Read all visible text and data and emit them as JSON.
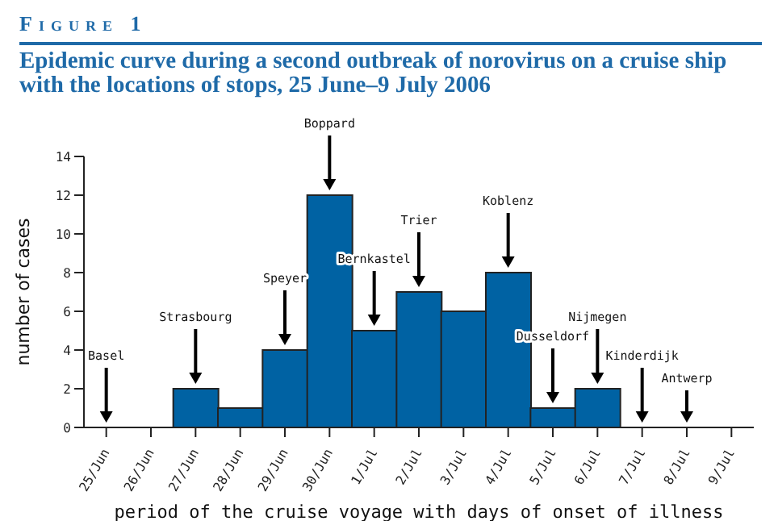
{
  "chart_data": {
    "type": "bar",
    "title": "Epidemic curve during a second outbreak of norovirus on a cruise ship with the locations of stops, 25 June–9 July 2006",
    "xlabel": "period of the cruise voyage with days of onset of illness",
    "ylabel": "number of cases",
    "categories": [
      "25/Jun",
      "26/Jun",
      "27/Jun",
      "28/Jun",
      "29/Jun",
      "30/Jun",
      "1/Jul",
      "2/Jul",
      "3/Jul",
      "4/Jul",
      "5/Jul",
      "6/Jul",
      "7/Jul",
      "8/Jul",
      "9/Jul"
    ],
    "values": [
      0,
      0,
      2,
      1,
      4,
      12,
      5,
      7,
      6,
      8,
      1,
      2,
      0,
      0,
      0
    ],
    "color": "#0062a3",
    "ylim": [
      0,
      14
    ],
    "yticks": [
      0,
      2,
      4,
      6,
      8,
      10,
      12,
      14
    ],
    "grid": false,
    "annotations": [
      "Figure 1",
      {
        "text": "Basel",
        "x": "25/Jun",
        "y": 0
      },
      {
        "text": "Strasbourg",
        "x": "27/Jun",
        "y": 2
      },
      {
        "text": "Speyer",
        "x": "29/Jun",
        "y": 4
      },
      {
        "text": "Boppard",
        "x": "30/Jun",
        "y": 12
      },
      {
        "text": "Bernkastel",
        "x": "1/Jul",
        "y": 5
      },
      {
        "text": "Trier",
        "x": "2/Jul",
        "y": 7
      },
      {
        "text": "Koblenz",
        "x": "4/Jul",
        "y": 8
      },
      {
        "text": "Dusseldorf",
        "x": "5/Jul",
        "y": 1
      },
      {
        "text": "Nijmegen",
        "x": "6/Jul",
        "y": 2
      },
      {
        "text": "Kinderdijk",
        "x": "7/Jul",
        "y": 0
      },
      {
        "text": "Antwerp",
        "x": "8/Jul",
        "y": 0
      }
    ]
  }
}
